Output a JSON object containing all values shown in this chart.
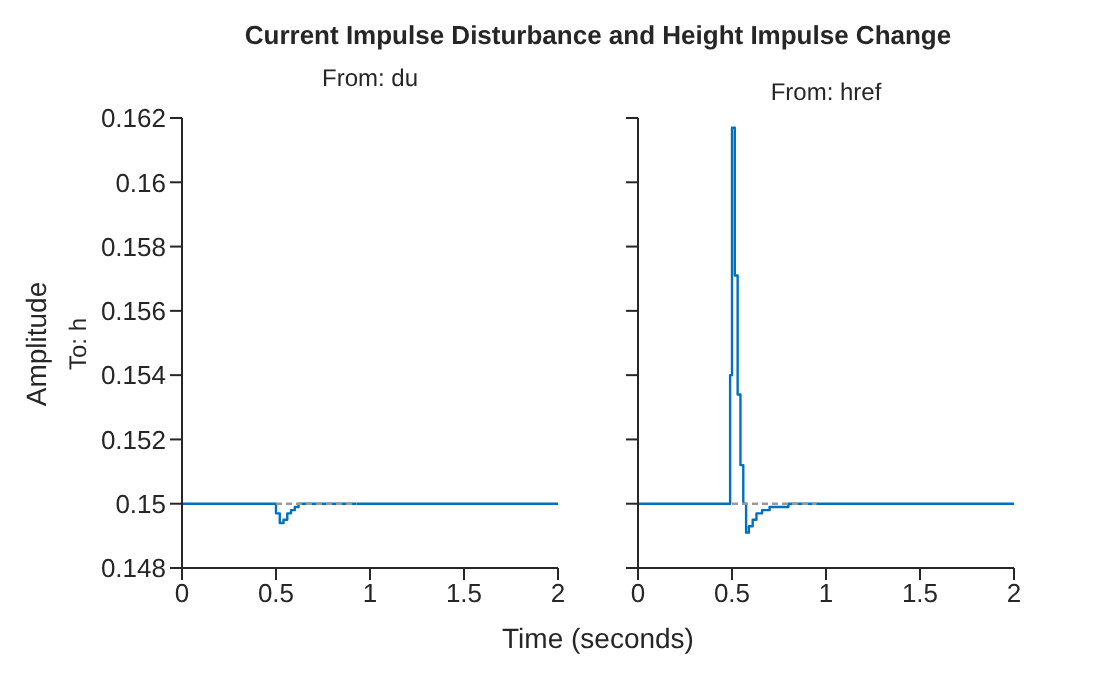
{
  "chart_data": [
    {
      "type": "step",
      "title": "Current Impulse Disturbance and Height Impulse Change",
      "subtitle": "From: du",
      "xlabel": "Time (seconds)",
      "ylabel": "Amplitude",
      "annotations": [
        "To: h"
      ],
      "xlim": [
        0,
        2
      ],
      "xticks": [
        0,
        0.5,
        1,
        1.5,
        2
      ],
      "ylim": [
        0.148,
        0.162
      ],
      "yticks": [
        0.148,
        0.15,
        0.152,
        0.154,
        0.156,
        0.158,
        0.16,
        0.162
      ],
      "grid": false,
      "legend": false,
      "series": [
        {
          "color": "#0072bd",
          "x": [
            0,
            0.5,
            0.52,
            0.54,
            0.56,
            0.58,
            0.6,
            0.62,
            0.64,
            2
          ],
          "values": [
            0.15,
            0.1497,
            0.1494,
            0.1495,
            0.1497,
            0.1498,
            0.1499,
            0.15,
            0.15,
            0.15
          ]
        },
        {
          "type": "line",
          "line_style": "dashed",
          "color": "#999999",
          "x": [
            0.5,
            0.93
          ],
          "values": [
            0.15,
            0.15
          ]
        }
      ]
    },
    {
      "type": "step",
      "subtitle": "From: href",
      "xlim": [
        0,
        2
      ],
      "xticks": [
        0,
        0.5,
        1,
        1.5,
        2
      ],
      "ylim": [
        0.148,
        0.162
      ],
      "yticks": [
        0.148,
        0.15,
        0.152,
        0.154,
        0.156,
        0.158,
        0.16,
        0.162
      ],
      "tick_labels": "x",
      "grid": false,
      "legend": false,
      "series": [
        {
          "color": "#0072bd",
          "x": [
            0,
            0.49,
            0.5,
            0.515,
            0.53,
            0.545,
            0.56,
            0.575,
            0.59,
            0.61,
            0.63,
            0.66,
            0.7,
            0.8,
            2
          ],
          "values": [
            0.15,
            0.154,
            0.1617,
            0.1571,
            0.1534,
            0.1512,
            0.15,
            0.1491,
            0.1493,
            0.1495,
            0.1497,
            0.1498,
            0.1499,
            0.15,
            0.15
          ]
        },
        {
          "type": "line",
          "line_style": "dashed",
          "color": "#999999",
          "x": [
            0.5,
            0.95
          ],
          "values": [
            0.15,
            0.15
          ]
        }
      ]
    }
  ]
}
